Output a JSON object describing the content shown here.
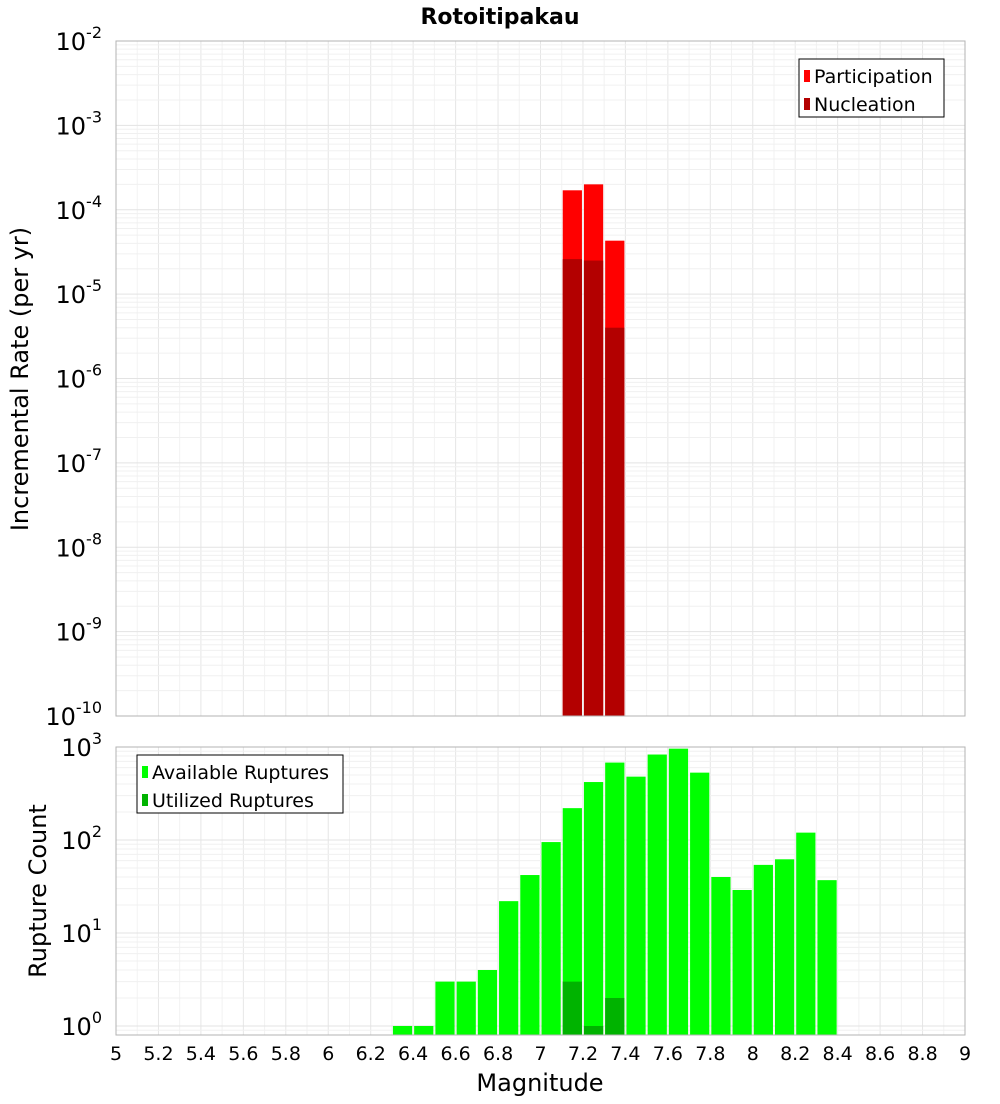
{
  "chart_data": [
    {
      "type": "bar",
      "title": "Rotoitipakau",
      "xlabel": "",
      "ylabel": "Incremental Rate (per yr)",
      "y_scale": "log",
      "ylim": [
        1e-10,
        0.01
      ],
      "xlim": [
        5,
        9
      ],
      "bin_width": 0.1,
      "grid": true,
      "legend_position": "top-right",
      "y_tick_labels": [
        {
          "base": "10",
          "exp": "-2"
        },
        {
          "base": "10",
          "exp": "-3"
        },
        {
          "base": "10",
          "exp": "-4"
        },
        {
          "base": "10",
          "exp": "-5"
        },
        {
          "base": "10",
          "exp": "-6"
        },
        {
          "base": "10",
          "exp": "-7"
        },
        {
          "base": "10",
          "exp": "-8"
        },
        {
          "base": "10",
          "exp": "-9"
        },
        {
          "base": "10",
          "exp": "-10"
        }
      ],
      "series": [
        {
          "name": "Participation",
          "color": "#ff0000",
          "x": [
            7.15,
            7.25,
            7.35
          ],
          "values": [
            0.00017,
            0.0002,
            4.3e-05
          ]
        },
        {
          "name": "Nucleation",
          "color": "#b30000",
          "x": [
            7.15,
            7.25,
            7.35
          ],
          "values": [
            2.6e-05,
            2.5e-05,
            4e-06
          ]
        }
      ]
    },
    {
      "type": "bar",
      "xlabel": "Magnitude",
      "ylabel": "Rupture Count",
      "y_scale": "log",
      "ylim": [
        0.8,
        1000
      ],
      "xlim": [
        5,
        9
      ],
      "bin_width": 0.1,
      "grid": true,
      "legend_position": "top-left",
      "x_tick_labels": [
        "5",
        "5.2",
        "5.4",
        "5.6",
        "5.8",
        "6",
        "6.2",
        "6.4",
        "6.6",
        "6.8",
        "7",
        "7.2",
        "7.4",
        "7.6",
        "7.8",
        "8",
        "8.2",
        "8.4",
        "8.6",
        "8.8",
        "9"
      ],
      "y_tick_labels": [
        {
          "base": "10",
          "exp": "3"
        },
        {
          "base": "10",
          "exp": "2"
        },
        {
          "base": "10",
          "exp": "1"
        },
        {
          "base": "10",
          "exp": "0"
        }
      ],
      "series": [
        {
          "name": "Available Ruptures",
          "color": "#00ff00",
          "x": [
            6.35,
            6.45,
            6.55,
            6.65,
            6.75,
            6.85,
            6.95,
            7.05,
            7.15,
            7.25,
            7.35,
            7.45,
            7.55,
            7.65,
            7.75,
            7.85,
            7.95,
            8.05,
            8.15,
            8.25,
            8.35
          ],
          "values": [
            1,
            1,
            3,
            3,
            4,
            22,
            42,
            95,
            220,
            420,
            680,
            480,
            830,
            960,
            530,
            40,
            29,
            54,
            62,
            120,
            37
          ]
        },
        {
          "name": "Utilized Ruptures",
          "color": "#00b300",
          "x": [
            7.15,
            7.25,
            7.35
          ],
          "values": [
            3,
            1,
            2
          ]
        }
      ]
    }
  ]
}
